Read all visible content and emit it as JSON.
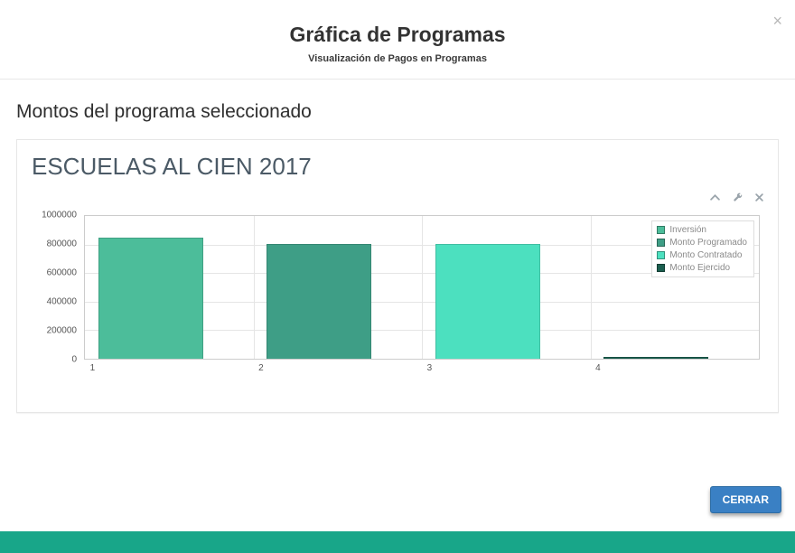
{
  "modal": {
    "title": "Gráfica de Programas",
    "subtitle": "Visualización de Pagos en Programas",
    "close_icon": "×"
  },
  "section_heading": "Montos del programa seleccionado",
  "panel": {
    "title": "ESCUELAS AL CIEN 2017"
  },
  "footer": {
    "close_button_label": "CERRAR"
  },
  "theme": {
    "accent_strip": "#18a689",
    "button_bg": "#3a80c4",
    "button_border": "#2e6da4"
  },
  "chart_data": {
    "type": "bar",
    "title": "ESCUELAS AL CIEN 2017",
    "categories": [
      "1",
      "2",
      "3",
      "4"
    ],
    "series": [
      {
        "name": "Inversión",
        "category": "1",
        "value": 850000,
        "color": "#4cbd9a"
      },
      {
        "name": "Monto Programado",
        "category": "2",
        "value": 805000,
        "color": "#3e9e86"
      },
      {
        "name": "Monto Contratado",
        "category": "3",
        "value": 805000,
        "color": "#4ce0bf"
      },
      {
        "name": "Monto Ejercido",
        "category": "4",
        "value": 15000,
        "color": "#1b5e4f"
      }
    ],
    "ylim": [
      0,
      1000000
    ],
    "yticks": [
      0,
      200000,
      400000,
      600000,
      800000,
      1000000
    ],
    "xlabel": "",
    "ylabel": "",
    "grid": true,
    "legend_position": "top-right",
    "legend": [
      "Inversión",
      "Monto Programado",
      "Monto Contratado",
      "Monto Ejercido"
    ]
  }
}
